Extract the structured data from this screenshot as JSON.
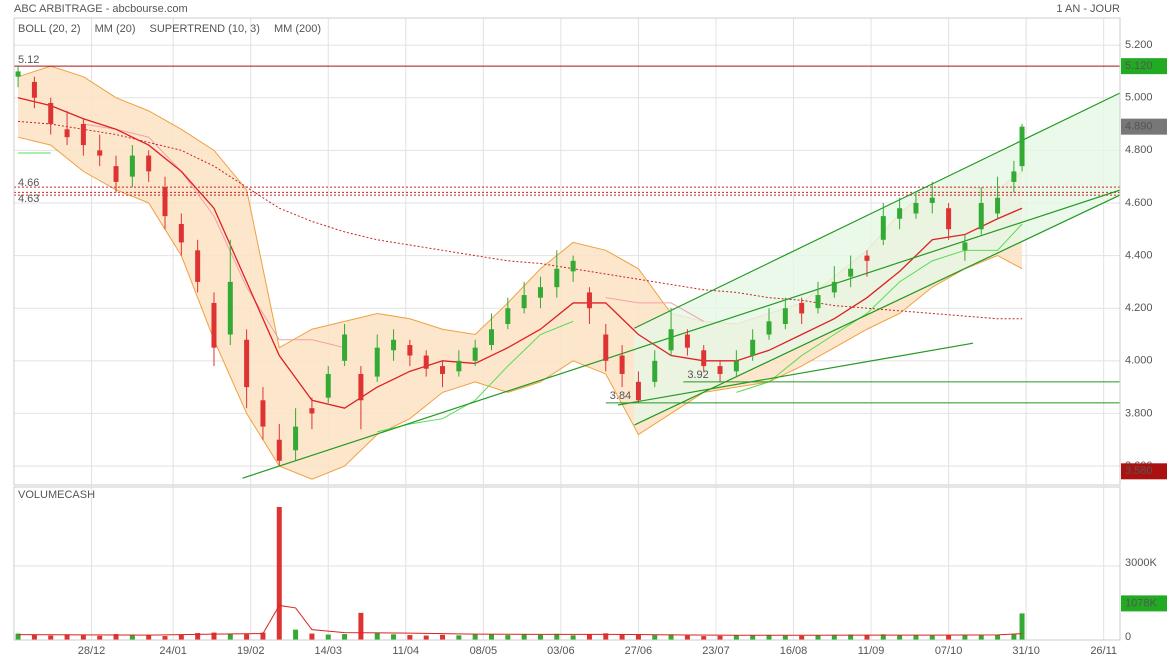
{
  "chart_data": {
    "type": "candlestick",
    "title": "ABC ARBITRAGE - abcbourse.com",
    "period": "1 AN - JOUR",
    "up_color": "#33aa33",
    "down_color": "#dd3333",
    "grid": true,
    "xlim": [
      -1,
      270
    ],
    "ylim": [
      3.528,
      5.303
    ],
    "xticks": [
      {
        "value": 18,
        "label": "28/12"
      },
      {
        "value": 38,
        "label": "24/01"
      },
      {
        "value": 57,
        "label": "19/02"
      },
      {
        "value": 76,
        "label": "14/03"
      },
      {
        "value": 95,
        "label": "11/04"
      },
      {
        "value": 114,
        "label": "08/05"
      },
      {
        "value": 133,
        "label": "03/06"
      },
      {
        "value": 152,
        "label": "27/06"
      },
      {
        "value": 171,
        "label": "23/07"
      },
      {
        "value": 190,
        "label": "16/08"
      },
      {
        "value": 209,
        "label": "11/09"
      },
      {
        "value": 228,
        "label": "07/10"
      },
      {
        "value": 247,
        "label": "31/10"
      },
      {
        "value": 266,
        "label": "26/11"
      }
    ],
    "yticks": [
      {
        "value": 5.2,
        "label": "5.200"
      },
      {
        "value": 5.0,
        "label": "5.000"
      },
      {
        "value": 4.8,
        "label": "4.800"
      },
      {
        "value": 4.6,
        "label": "4.600"
      },
      {
        "value": 4.4,
        "label": "4.400"
      },
      {
        "value": 4.2,
        "label": "4.200"
      },
      {
        "value": 4.0,
        "label": "4.000"
      },
      {
        "value": 3.8,
        "label": "3.800"
      },
      {
        "value": 3.6,
        "label": "3.600"
      }
    ],
    "x": [
      0,
      4,
      8,
      12,
      16,
      20,
      24,
      28,
      32,
      36,
      40,
      44,
      48,
      52,
      56,
      60,
      64,
      68,
      72,
      76,
      80,
      84,
      88,
      92,
      96,
      100,
      104,
      108,
      112,
      116,
      120,
      124,
      128,
      132,
      136,
      140,
      144,
      148,
      152,
      156,
      160,
      164,
      168,
      172,
      176,
      180,
      184,
      188,
      192,
      196,
      200,
      204,
      208,
      212,
      216,
      220,
      224,
      228,
      232,
      236,
      240,
      244,
      246
    ],
    "open": [
      5.08,
      5.06,
      4.98,
      4.88,
      4.9,
      4.8,
      4.74,
      4.7,
      4.78,
      4.66,
      4.52,
      4.42,
      4.22,
      4.1,
      4.08,
      3.85,
      3.7,
      3.66,
      3.82,
      3.86,
      4.0,
      3.95,
      3.94,
      4.04,
      4.06,
      4.02,
      3.98,
      3.96,
      4.0,
      4.06,
      4.14,
      4.2,
      4.24,
      4.28,
      4.34,
      4.26,
      4.1,
      4.02,
      3.92,
      3.92,
      4.04,
      4.1,
      4.04,
      3.98,
      3.96,
      4.02,
      4.1,
      4.14,
      4.22,
      4.2,
      4.26,
      4.32,
      4.4,
      4.46,
      4.54,
      4.56,
      4.6,
      4.58,
      4.42,
      4.5,
      4.56,
      4.68,
      4.74
    ],
    "high": [
      5.12,
      5.08,
      5.0,
      4.95,
      4.92,
      4.86,
      4.78,
      4.82,
      4.8,
      4.7,
      4.56,
      4.46,
      4.26,
      4.46,
      4.12,
      3.9,
      3.76,
      3.82,
      3.86,
      3.98,
      4.14,
      3.98,
      4.1,
      4.12,
      4.08,
      4.04,
      4.0,
      4.04,
      4.08,
      4.18,
      4.24,
      4.3,
      4.32,
      4.42,
      4.4,
      4.28,
      4.14,
      4.06,
      3.96,
      4.04,
      4.2,
      4.12,
      4.06,
      4.0,
      4.04,
      4.12,
      4.2,
      4.24,
      4.24,
      4.3,
      4.36,
      4.4,
      4.42,
      4.6,
      4.62,
      4.64,
      4.68,
      4.6,
      4.48,
      4.66,
      4.7,
      4.76,
      4.9
    ],
    "low": [
      5.04,
      4.96,
      4.86,
      4.82,
      4.78,
      4.74,
      4.64,
      4.66,
      4.68,
      4.5,
      4.4,
      4.26,
      3.98,
      4.06,
      3.82,
      3.7,
      3.6,
      3.62,
      3.74,
      3.84,
      3.98,
      3.74,
      3.92,
      4.0,
      3.98,
      3.94,
      3.9,
      3.94,
      3.98,
      4.04,
      4.12,
      4.18,
      4.2,
      4.24,
      4.3,
      4.14,
      3.96,
      3.9,
      3.84,
      3.9,
      4.02,
      4.02,
      3.96,
      3.92,
      3.94,
      4.0,
      4.08,
      4.12,
      4.14,
      4.18,
      4.24,
      4.28,
      4.32,
      4.44,
      4.5,
      4.54,
      4.56,
      4.46,
      4.38,
      4.48,
      4.54,
      4.64,
      4.72
    ],
    "close": [
      5.1,
      5.0,
      4.9,
      4.85,
      4.82,
      4.78,
      4.68,
      4.78,
      4.72,
      4.55,
      4.45,
      4.3,
      4.05,
      4.3,
      3.9,
      3.75,
      3.62,
      3.75,
      3.8,
      3.95,
      4.1,
      3.85,
      4.05,
      4.08,
      4.02,
      3.97,
      3.95,
      4.0,
      4.05,
      4.12,
      4.2,
      4.25,
      4.28,
      4.35,
      4.38,
      4.2,
      4.0,
      3.95,
      3.85,
      4.0,
      4.12,
      4.05,
      3.98,
      3.95,
      4.0,
      4.08,
      4.15,
      4.2,
      4.18,
      4.25,
      4.3,
      4.35,
      4.38,
      4.55,
      4.58,
      4.6,
      4.62,
      4.5,
      4.45,
      4.6,
      4.62,
      4.72,
      4.89
    ],
    "indicators": {
      "x": [
        0,
        8,
        16,
        24,
        32,
        40,
        48,
        56,
        64,
        72,
        80,
        88,
        96,
        104,
        112,
        120,
        128,
        136,
        144,
        152,
        160,
        168,
        176,
        184,
        192,
        200,
        208,
        216,
        224,
        232,
        240,
        246
      ],
      "boll": {
        "name": "BOLL (20, 2)",
        "color": "#f0a040",
        "fill": "#fbe3c4",
        "upper": [
          5.08,
          5.12,
          5.08,
          5.0,
          4.95,
          4.88,
          4.8,
          4.65,
          4.05,
          4.12,
          4.15,
          4.18,
          4.16,
          4.12,
          4.1,
          4.22,
          4.35,
          4.45,
          4.42,
          4.35,
          4.18,
          4.15,
          4.14,
          4.18,
          4.22,
          4.32,
          4.42,
          4.56,
          4.66,
          4.66,
          4.65,
          4.72
        ],
        "lower": [
          4.85,
          4.82,
          4.72,
          4.65,
          4.6,
          4.4,
          4.08,
          3.8,
          3.6,
          3.55,
          3.6,
          3.72,
          3.78,
          3.88,
          3.92,
          3.88,
          3.92,
          4.0,
          3.95,
          3.72,
          3.8,
          3.88,
          3.9,
          3.92,
          3.98,
          4.05,
          4.12,
          4.18,
          4.28,
          4.35,
          4.4,
          4.35
        ]
      },
      "mm20": {
        "name": "MM (20)",
        "color": "#dd2222",
        "values": [
          5.0,
          4.97,
          4.92,
          4.88,
          4.82,
          4.72,
          4.58,
          4.3,
          4.02,
          3.85,
          3.82,
          3.9,
          3.96,
          4.0,
          3.99,
          4.05,
          4.12,
          4.22,
          4.22,
          4.1,
          4.02,
          4.0,
          4.0,
          4.04,
          4.1,
          4.16,
          4.24,
          4.34,
          4.46,
          4.48,
          4.54,
          4.58
        ]
      },
      "supertrend": {
        "name": "SUPERTREND (10, 3)",
        "color": "#f4a0a8",
        "color_up": "#55dd55",
        "down": [
          null,
          null,
          4.9,
          4.88,
          4.85,
          4.72,
          4.55,
          4.28,
          4.08,
          4.08,
          4.05,
          null,
          null,
          null,
          null,
          null,
          null,
          null,
          4.24,
          4.22,
          4.22,
          4.15,
          null,
          null,
          null,
          null,
          null,
          null,
          null,
          null,
          null,
          null
        ],
        "up": [
          4.79,
          4.79,
          null,
          null,
          null,
          null,
          null,
          null,
          null,
          null,
          null,
          3.73,
          3.76,
          3.78,
          3.85,
          3.98,
          4.1,
          4.15,
          null,
          null,
          null,
          null,
          3.88,
          3.92,
          4.02,
          4.1,
          4.18,
          4.3,
          4.38,
          4.42,
          4.42,
          4.52
        ]
      },
      "mm200": {
        "name": "MM (200)",
        "color": "#cc2222",
        "values": [
          4.91,
          4.9,
          4.88,
          4.86,
          4.83,
          4.8,
          4.74,
          4.66,
          4.58,
          4.53,
          4.49,
          4.46,
          4.44,
          4.42,
          4.4,
          4.38,
          4.37,
          4.35,
          4.33,
          4.31,
          4.29,
          4.27,
          4.26,
          4.24,
          4.23,
          4.21,
          4.2,
          4.19,
          4.18,
          4.17,
          4.16,
          4.16
        ]
      }
    },
    "levels": [
      {
        "value": 5.12,
        "color": "#aa1111"
      },
      {
        "value": 4.66,
        "color": "#cc2222"
      },
      {
        "value": 4.64,
        "color": "#cc2222"
      },
      {
        "value": 4.63,
        "color": "#cc2222"
      }
    ],
    "supports": [
      {
        "value": 3.92,
        "x": [
          163,
          270
        ]
      },
      {
        "value": 3.84,
        "x": [
          144,
          270
        ]
      }
    ],
    "trendlines": [
      {
        "x": [
          55,
          270
        ],
        "y": [
          3.554,
          4.649
        ]
      },
      {
        "x": [
          151,
          270
        ],
        "y": [
          4.124,
          5.018
        ]
      },
      {
        "x": [
          151,
          270
        ],
        "y": [
          3.756,
          4.63
        ]
      },
      {
        "x": [
          147,
          234
        ],
        "y": [
          3.832,
          4.067
        ]
      }
    ],
    "trend_color": "#229922",
    "channel_fill": "#e6f8e6",
    "badges": [
      {
        "value": 5.12,
        "label": "5.120",
        "color": "#22aa22"
      },
      {
        "value": 4.89,
        "label": "4.890",
        "color": "#777777"
      },
      {
        "value": 3.58,
        "label": "3.580",
        "color": "#aa1111"
      }
    ],
    "volume": {
      "title": "VOLUMECASH",
      "ylim": [
        0,
        6200000
      ],
      "yticks": [
        {
          "value": 3000000,
          "label": "3000K"
        },
        0
      ],
      "values": [
        260000,
        210000,
        180000,
        230000,
        200000,
        170000,
        240000,
        190000,
        210000,
        160000,
        220000,
        280000,
        300000,
        260000,
        240000,
        300000,
        5390000,
        420000,
        260000,
        220000,
        240000,
        1100000,
        280000,
        230000,
        200000,
        180000,
        210000,
        190000,
        220000,
        240000,
        200000,
        230000,
        210000,
        250000,
        190000,
        230000,
        270000,
        240000,
        210000,
        200000,
        230000,
        180000,
        160000,
        170000,
        200000,
        190000,
        210000,
        180000,
        170000,
        190000,
        210000,
        220000,
        200000,
        230000,
        190000,
        210000,
        180000,
        200000,
        220000,
        190000,
        210000,
        240000,
        1078000
      ],
      "badge": {
        "value": 1078000,
        "label": "1078K",
        "color": "#22aa22"
      },
      "ma": {
        "color": "#dd2222",
        "x": [
          0,
          16,
          32,
          48,
          60,
          64,
          68,
          72,
          80,
          96,
          112,
          128,
          144,
          160,
          176,
          192,
          208,
          224,
          240,
          246
        ],
        "values": [
          220000,
          210000,
          200000,
          240000,
          260000,
          1400000,
          1300000,
          420000,
          300000,
          280000,
          240000,
          230000,
          230000,
          210000,
          190000,
          190000,
          200000,
          200000,
          210000,
          260000
        ]
      }
    }
  }
}
